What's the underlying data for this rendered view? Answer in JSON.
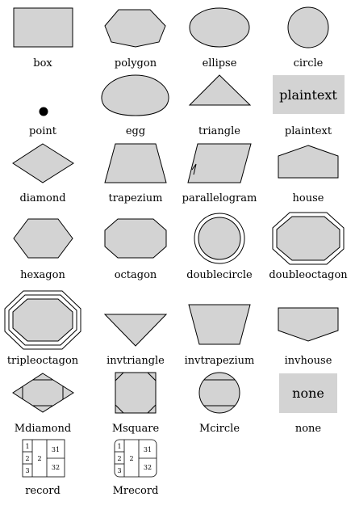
{
  "colors": {
    "fill": "#d3d3d3",
    "stroke": "#000000",
    "background": "#ffffff"
  },
  "shapes": [
    {
      "id": "box",
      "label": "box"
    },
    {
      "id": "polygon",
      "label": "polygon"
    },
    {
      "id": "ellipse",
      "label": "ellipse"
    },
    {
      "id": "circle",
      "label": "circle"
    },
    {
      "id": "point",
      "label": "point"
    },
    {
      "id": "egg",
      "label": "egg"
    },
    {
      "id": "triangle",
      "label": "triangle"
    },
    {
      "id": "plaintext",
      "label": "plaintext",
      "inner_text": "plaintext"
    },
    {
      "id": "diamond",
      "label": "diamond"
    },
    {
      "id": "trapezium",
      "label": "trapezium"
    },
    {
      "id": "parallelogram",
      "label": "parallelogram"
    },
    {
      "id": "house",
      "label": "house"
    },
    {
      "id": "hexagon",
      "label": "hexagon"
    },
    {
      "id": "octagon",
      "label": "octagon"
    },
    {
      "id": "doublecircle",
      "label": "doublecircle"
    },
    {
      "id": "doubleoctagon",
      "label": "doubleoctagon"
    },
    {
      "id": "tripleoctagon",
      "label": "tripleoctagon"
    },
    {
      "id": "invtriangle",
      "label": "invtriangle"
    },
    {
      "id": "invtrapezium",
      "label": "invtrapezium"
    },
    {
      "id": "invhouse",
      "label": "invhouse"
    },
    {
      "id": "Mdiamond",
      "label": "Mdiamond"
    },
    {
      "id": "Msquare",
      "label": "Msquare"
    },
    {
      "id": "Mcircle",
      "label": "Mcircle"
    },
    {
      "id": "none",
      "label": "none",
      "inner_text": "none"
    },
    {
      "id": "record",
      "label": "record",
      "fields": [
        "1",
        "2",
        "3",
        "2",
        "31",
        "32"
      ]
    },
    {
      "id": "Mrecord",
      "label": "Mrecord",
      "fields": [
        "1",
        "2",
        "3",
        "2",
        "31",
        "32"
      ]
    }
  ]
}
